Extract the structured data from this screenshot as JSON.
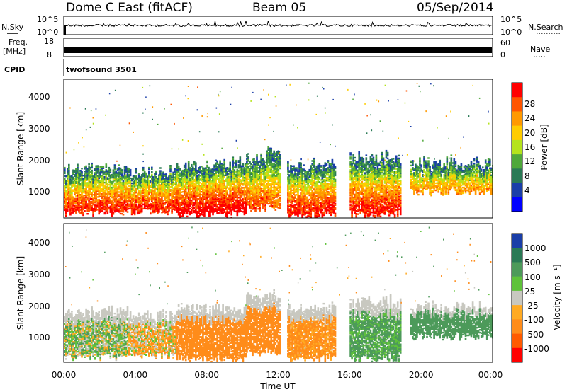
{
  "header": {
    "station": "Dome C East (fitACF)",
    "beam": "Beam 05",
    "date": "05/Sep/2014"
  },
  "strips": {
    "nsky_label": "N.Sky",
    "nsearch_label": "N.Search",
    "nsky_ticks": [
      "10^5",
      "10^0"
    ],
    "nsearch_ticks": [
      "10^5",
      "10^0"
    ],
    "freq_label_top": "Freq.",
    "freq_label_unit": "[MHz]",
    "freq_ticks": [
      "18",
      "8"
    ],
    "nave_label": "Nave",
    "nave_ticks": [
      "60",
      "0"
    ],
    "cpid_label": "CPID",
    "cpid_value": "twofsound 3501"
  },
  "axes": {
    "xlabel": "Time UT",
    "ylabel": "Slant Range [km]",
    "x_ticks": [
      "00:00",
      "04:00",
      "08:00",
      "12:00",
      "16:00",
      "20:00",
      "00:00"
    ],
    "y_ticks": [
      "1000",
      "2000",
      "3000",
      "4000"
    ]
  },
  "colorbars": {
    "power": {
      "label": "Power [dB]",
      "ticks": [
        "28",
        "24",
        "20",
        "16",
        "12",
        "8",
        "4"
      ],
      "colors": [
        "#ff0000",
        "#ff5500",
        "#ff9900",
        "#ffcc00",
        "#b5e31c",
        "#4fa83a",
        "#2a7a55",
        "#1a3ea8",
        "#0000ff"
      ]
    },
    "velocity": {
      "label": "Velocity [m s⁻¹]",
      "ticks": [
        "1000",
        "500",
        "100",
        "25",
        "-25",
        "-100",
        "-500",
        "-1000"
      ],
      "colors": [
        "#1a3ea8",
        "#2a7a55",
        "#4d9a5a",
        "#5fc23a",
        "#c8c8c0",
        "#ffaa22",
        "#ff8c1a",
        "#ff5a00",
        "#ff0000"
      ]
    }
  },
  "chart_data": [
    {
      "type": "heatmap",
      "title": "Power",
      "xlabel": "Time UT",
      "ylabel": "Slant Range [km]",
      "xlim": [
        0,
        24
      ],
      "ylim": [
        180,
        4600
      ],
      "colorbar_label": "Power [dB]",
      "value_range": [
        0,
        30
      ],
      "scatter_regions": [
        {
          "t_start": 0.0,
          "t_end": 3.6,
          "r_low": 350,
          "r_high": 1750,
          "peak_dB": 28
        },
        {
          "t_start": 3.6,
          "t_end": 6.3,
          "r_low": 400,
          "r_high": 1650,
          "peak_dB": 28
        },
        {
          "t_start": 6.3,
          "t_end": 10.2,
          "r_low": 300,
          "r_high": 1900,
          "peak_dB": 30
        },
        {
          "t_start": 10.2,
          "t_end": 11.4,
          "r_low": 500,
          "r_high": 2100,
          "peak_dB": 26
        },
        {
          "t_start": 11.4,
          "t_end": 12.1,
          "r_low": 500,
          "r_high": 2300,
          "peak_dB": 24
        },
        {
          "t_start": 12.5,
          "t_end": 15.2,
          "r_low": 300,
          "r_high": 1900,
          "peak_dB": 28
        },
        {
          "t_start": 16.0,
          "t_end": 18.8,
          "r_low": 300,
          "r_high": 2100,
          "peak_dB": 28
        },
        {
          "t_start": 19.4,
          "t_end": 24.0,
          "r_low": 1000,
          "r_high": 1900,
          "peak_dB": 22
        }
      ]
    },
    {
      "type": "heatmap",
      "title": "Velocity",
      "xlabel": "Time UT",
      "ylabel": "Slant Range [km]",
      "xlim": [
        0,
        24
      ],
      "ylim": [
        180,
        4600
      ],
      "colorbar_label": "Velocity [m s⁻¹]",
      "value_range": [
        -1000,
        1000
      ],
      "scatter_regions": [
        {
          "t_start": 0.0,
          "t_end": 3.6,
          "r_low": 350,
          "r_high": 1750,
          "typical_ms": 50
        },
        {
          "t_start": 3.6,
          "t_end": 6.3,
          "r_low": 400,
          "r_high": 1650,
          "typical_ms": -60
        },
        {
          "t_start": 6.3,
          "t_end": 10.2,
          "r_low": 300,
          "r_high": 1900,
          "typical_ms": -300
        },
        {
          "t_start": 10.2,
          "t_end": 12.1,
          "r_low": 500,
          "r_high": 2300,
          "typical_ms": -350
        },
        {
          "t_start": 12.5,
          "t_end": 15.2,
          "r_low": 300,
          "r_high": 1900,
          "typical_ms": -150
        },
        {
          "t_start": 16.0,
          "t_end": 18.8,
          "r_low": 300,
          "r_high": 2100,
          "typical_ms": 150
        },
        {
          "t_start": 19.4,
          "t_end": 24.0,
          "r_low": 1000,
          "r_high": 1900,
          "typical_ms": 250
        }
      ]
    }
  ]
}
